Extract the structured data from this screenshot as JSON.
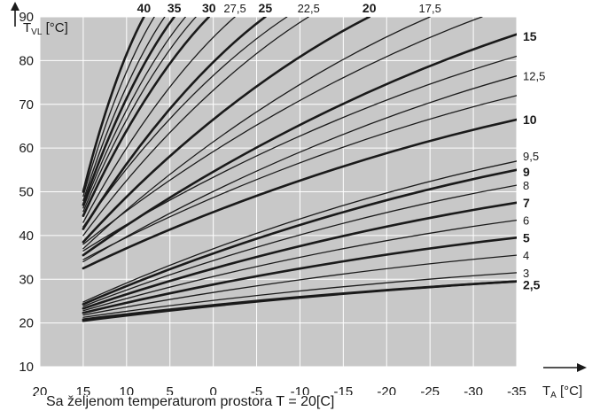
{
  "chart_data": {
    "type": "line",
    "title": "",
    "ylabel_main": "T",
    "ylabel_sub": "VL",
    "ylabel_unit": " [°C]",
    "xlabel_main": "T",
    "xlabel_sub": "A",
    "xlabel_unit": " [°C]",
    "caption": "Sa željenom temperaturom prostora T = 20[C]",
    "xlim": [
      20,
      -35
    ],
    "ylim": [
      10,
      90
    ],
    "y_ticks": [
      10,
      20,
      30,
      40,
      50,
      60,
      70,
      80,
      90
    ],
    "x_ticks": [
      20,
      15,
      10,
      5,
      0,
      -5,
      -10,
      -15,
      -20,
      -25,
      -30,
      -35
    ],
    "x_tick_labels": [
      "20",
      "15",
      "10",
      "5",
      "0",
      "-5",
      "-10",
      "-15",
      "-20",
      "-25",
      "-30",
      "-35"
    ],
    "grid": true,
    "background_color": "#c8c8c8",
    "grid_color": "#ffffff",
    "line_color": "#1a1a1a",
    "curve_start_x": 15,
    "series": [
      {
        "name": "2,5",
        "bold": true,
        "end_label": "right",
        "points": [
          [
            15,
            20.8
          ],
          [
            -35,
            29.5
          ]
        ]
      },
      {
        "name": "3",
        "bold": false,
        "end_label": "right",
        "points": [
          [
            15,
            21.3
          ],
          [
            -35,
            31.5
          ]
        ]
      },
      {
        "name": "4",
        "bold": false,
        "end_label": "right",
        "points": [
          [
            15,
            21.8
          ],
          [
            -35,
            35.5
          ]
        ]
      },
      {
        "name": "5",
        "bold": true,
        "end_label": "right",
        "points": [
          [
            15,
            22.3
          ],
          [
            -35,
            39.5
          ]
        ]
      },
      {
        "name": "6",
        "bold": false,
        "end_label": "right",
        "points": [
          [
            15,
            22.8
          ],
          [
            -35,
            43.5
          ]
        ]
      },
      {
        "name": "7",
        "bold": true,
        "end_label": "right",
        "points": [
          [
            15,
            23.3
          ],
          [
            -35,
            47.5
          ]
        ]
      },
      {
        "name": "8",
        "bold": false,
        "end_label": "right",
        "points": [
          [
            15,
            23.8
          ],
          [
            -35,
            51.5
          ]
        ]
      },
      {
        "name": "9",
        "bold": true,
        "end_label": "right",
        "points": [
          [
            15,
            24.3
          ],
          [
            -35,
            55.0
          ]
        ]
      },
      {
        "name": "9,5",
        "bold": false,
        "end_label": "right",
        "points": [
          [
            15,
            24.8
          ],
          [
            -35,
            57.0
          ]
        ]
      },
      {
        "name": "10",
        "bold": true,
        "end_label": "right",
        "points": [
          [
            15,
            32.5
          ],
          [
            -35,
            66.5
          ]
        ]
      },
      {
        "name": "12,5",
        "bold": false,
        "end_label": "right",
        "points": [
          [
            15,
            34.0
          ],
          [
            -35,
            76.5
          ]
        ]
      },
      {
        "name": "15",
        "bold": true,
        "end_label": "right",
        "points": [
          [
            15,
            35.5
          ],
          [
            -35,
            86.0
          ]
        ]
      },
      {
        "name": "17,5",
        "bold": false,
        "end_label": "top",
        "points": [
          [
            15,
            37.0
          ],
          [
            -25,
            90
          ]
        ]
      },
      {
        "name": "20",
        "bold": true,
        "end_label": "top",
        "points": [
          [
            15,
            38.5
          ],
          [
            -18,
            90
          ]
        ]
      },
      {
        "name": "22,5",
        "bold": false,
        "end_label": "top",
        "points": [
          [
            15,
            40.0
          ],
          [
            -11,
            90
          ]
        ]
      },
      {
        "name": "25",
        "bold": true,
        "end_label": "top",
        "points": [
          [
            15,
            41.5
          ],
          [
            -6,
            90
          ]
        ]
      },
      {
        "name": "27,5",
        "bold": false,
        "end_label": "top",
        "points": [
          [
            15,
            43.0
          ],
          [
            -2.5,
            90
          ]
        ]
      },
      {
        "name": "30",
        "bold": true,
        "end_label": "top",
        "points": [
          [
            15,
            44.5
          ],
          [
            0.5,
            90
          ]
        ]
      },
      {
        "name": "35",
        "bold": true,
        "end_label": "top",
        "points": [
          [
            15,
            47.0
          ],
          [
            4.5,
            90
          ]
        ]
      },
      {
        "name": "40",
        "bold": true,
        "end_label": "top",
        "points": [
          [
            15,
            50.0
          ],
          [
            8.0,
            90
          ]
        ]
      }
    ],
    "extra_curves": [
      {
        "bold": true,
        "points": [
          [
            15,
            20.5
          ],
          [
            -35,
            29.5
          ]
        ]
      },
      {
        "bold": false,
        "points": [
          [
            15,
            34.5
          ],
          [
            -35,
            72.0
          ]
        ]
      },
      {
        "bold": false,
        "points": [
          [
            15,
            36.5
          ],
          [
            -35,
            81.0
          ]
        ]
      },
      {
        "bold": false,
        "points": [
          [
            15,
            38.0
          ],
          [
            -31,
            90
          ]
        ]
      },
      {
        "bold": false,
        "points": [
          [
            15,
            42.0
          ],
          [
            -8.5,
            90
          ]
        ]
      },
      {
        "bold": false,
        "points": [
          [
            15,
            45.5
          ],
          [
            2.0,
            90
          ]
        ]
      },
      {
        "bold": false,
        "points": [
          [
            15,
            46.3
          ],
          [
            3.2,
            90
          ]
        ]
      },
      {
        "bold": false,
        "points": [
          [
            15,
            48.0
          ],
          [
            5.6,
            90
          ]
        ]
      },
      {
        "bold": false,
        "points": [
          [
            15,
            49.0
          ],
          [
            6.8,
            90
          ]
        ]
      }
    ]
  }
}
